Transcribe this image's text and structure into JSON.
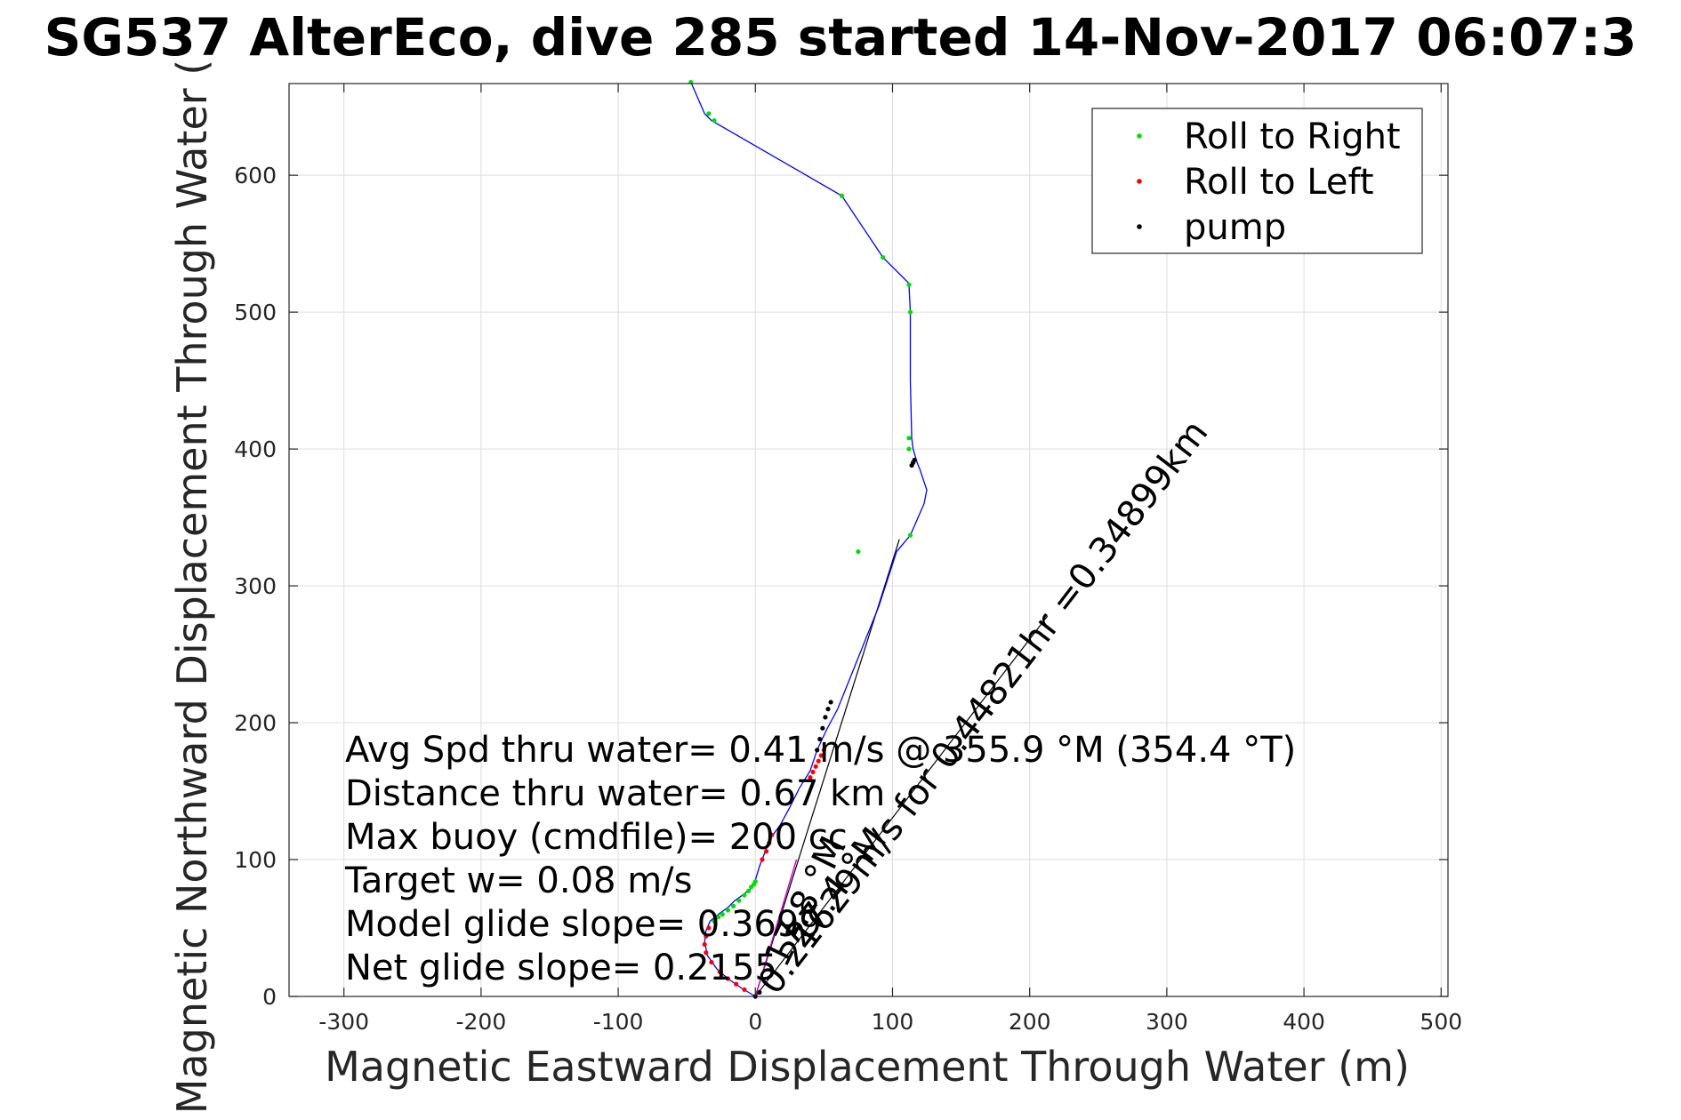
{
  "chart_data": {
    "type": "line",
    "title": "SG537 AlterEco, dive 285 started 14-Nov-2017 06:07:3",
    "xlabel": "Magnetic Eastward Displacement Through Water (m)",
    "ylabel": "Magnetic Northward Displacement Through Water (",
    "xlim": [
      -340,
      505
    ],
    "ylim": [
      0,
      667
    ],
    "xticks": [
      -300,
      -200,
      -100,
      0,
      100,
      200,
      300,
      400,
      500
    ],
    "yticks": [
      0,
      100,
      200,
      300,
      400,
      500,
      600
    ],
    "grid": true,
    "legend": {
      "placement": "top-right",
      "entries": [
        {
          "label": "Roll to Right",
          "color": "#00e000"
        },
        {
          "label": "Roll to Left",
          "color": "#ff0000"
        },
        {
          "label": "pump",
          "color": "#000000"
        }
      ]
    },
    "track": {
      "color": "#0000ff",
      "x": [
        0,
        -10,
        -20,
        -28,
        -35,
        -37,
        -36,
        -33,
        -27,
        -20,
        -15,
        -8,
        -2,
        0,
        3,
        8,
        12,
        18,
        25,
        32,
        40,
        45,
        52,
        60,
        68,
        78,
        90,
        103,
        113,
        123,
        125,
        120,
        118,
        115,
        114,
        113,
        113,
        112,
        112,
        113,
        93,
        63,
        -32,
        -37,
        -47
      ],
      "y": [
        0,
        6,
        13,
        20,
        30,
        40,
        48,
        55,
        60,
        65,
        70,
        75,
        80,
        85,
        95,
        108,
        117,
        125,
        138,
        152,
        165,
        180,
        195,
        210,
        230,
        255,
        285,
        325,
        337,
        360,
        370,
        385,
        390,
        400,
        408,
        450,
        500,
        520,
        520,
        520,
        540,
        585,
        640,
        645,
        668
      ]
    },
    "roll_right_points": {
      "x": [
        -30,
        -27,
        -24,
        -20,
        -16,
        -12,
        -8,
        -5,
        -3,
        -1,
        0,
        75,
        113,
        112,
        112,
        113,
        112,
        93,
        63,
        -30,
        -34,
        -47
      ],
      "y": [
        55,
        58,
        60,
        63,
        66,
        70,
        74,
        77,
        80,
        82,
        84,
        325,
        337,
        400,
        408,
        500,
        520,
        540,
        585,
        640,
        645,
        668
      ]
    },
    "roll_left_points": {
      "x": [
        -8,
        -14,
        -20,
        -26,
        -32,
        -36,
        -37,
        -36,
        -34,
        5,
        8,
        10,
        12,
        40,
        42,
        44,
        46,
        48,
        50
      ],
      "y": [
        5,
        9,
        13,
        18,
        25,
        32,
        38,
        44,
        50,
        100,
        106,
        112,
        118,
        160,
        164,
        168,
        172,
        176,
        180
      ]
    },
    "pump_points": {
      "x": [
        0,
        3,
        45,
        47,
        49,
        51,
        53,
        55,
        114,
        115,
        116
      ],
      "y": [
        0,
        3,
        180,
        188,
        196,
        204,
        210,
        215,
        388,
        390,
        392
      ]
    },
    "magenta_segment": {
      "color": "#cc00cc",
      "from": [
        0,
        0
      ],
      "to": [
        30,
        100
      ]
    },
    "lines": [
      {
        "from": [
          0,
          0
        ],
        "to": [
          105,
          334
        ],
        "color": "#000000"
      },
      {
        "from": [
          0,
          0
        ],
        "to": [
          213,
          278
        ],
        "color": "#000000"
      }
    ],
    "annotations": [
      "Avg Spd thru water=  0.41 m/s @ 355.9 °M (354.4 °T)",
      "Distance thru water=  0.67 km",
      "Max buoy (cmdfile)= 200 cc",
      "Target w= 0.08 m/s",
      "Model glide slope= 0.3699",
      "Net glide slope= 0.2155"
    ],
    "diagonal_annotations": [
      {
        "text": "0.21629m/s for 0.44821hr =0.34899km",
        "anchor": [
          15,
          0
        ],
        "angle_deg": 52.5
      },
      {
        "text": "27.4 °M",
        "anchor": [
          35,
          34
        ],
        "angle_deg": 52.5
      },
      {
        "text": "17.8 °M",
        "anchor": [
          22,
          20
        ],
        "angle_deg": 64
      }
    ]
  }
}
